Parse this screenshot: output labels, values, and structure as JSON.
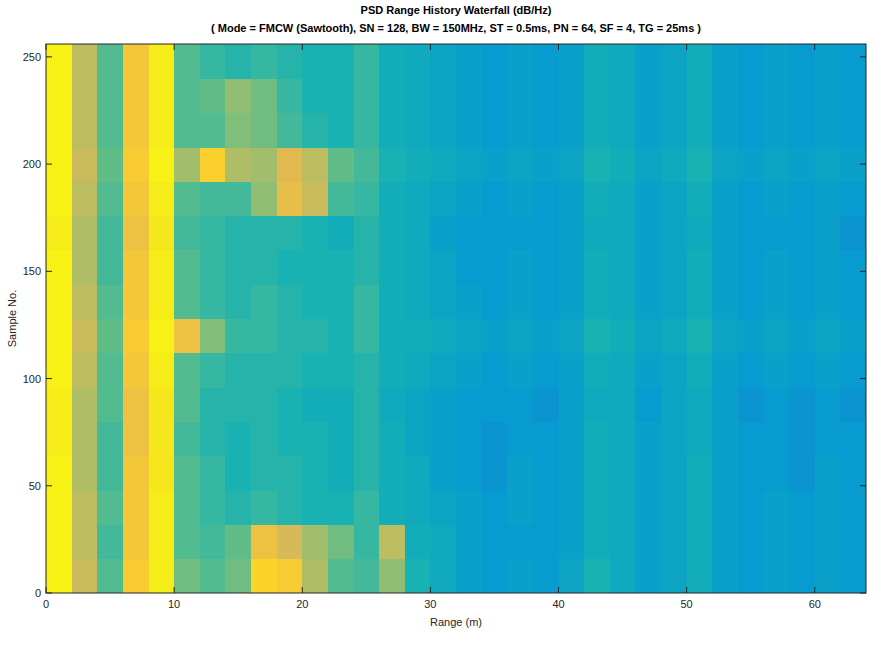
{
  "chart_data": {
    "type": "heatmap",
    "title": "PSD Range History Waterfall (dB/Hz)",
    "subtitle": "( Mode = FMCW (Sawtooth), SN = 128, BW = 150MHz, ST = 0.5ms, PN = 64, SF = 4, TG = 25ms )",
    "x_label": "Range (m)",
    "y_label": "Sample No.",
    "xlim": [
      0,
      64
    ],
    "ylim": [
      0,
      256
    ],
    "xticks": [
      0,
      10,
      20,
      30,
      40,
      50,
      60
    ],
    "yticks": [
      0,
      50,
      100,
      150,
      200,
      250
    ],
    "x_edges": [
      0,
      2,
      4,
      6,
      8,
      10,
      12,
      14,
      16,
      18,
      20,
      22,
      24,
      26,
      28,
      30,
      32,
      34,
      36,
      38,
      40,
      42,
      44,
      46,
      48,
      50,
      52,
      54,
      56,
      58,
      60,
      62,
      64
    ],
    "y_edges": [
      0,
      16,
      32,
      48,
      64,
      80,
      96,
      112,
      128,
      144,
      160,
      176,
      192,
      208,
      224,
      240,
      256
    ],
    "color_range": [
      -75,
      -28
    ],
    "cells": [
      [
        -30,
        -44,
        -52,
        -38,
        -31,
        -50,
        -52,
        -50,
        -36,
        -38,
        -46,
        -52,
        -53,
        -48,
        -56,
        -58,
        -60,
        -61,
        -60,
        -61,
        -59,
        -56,
        -58,
        -60,
        -59,
        -57,
        -60,
        -61,
        -60,
        -61,
        -60,
        -61
      ],
      [
        -30,
        -45,
        -53,
        -39,
        -31,
        -52,
        -53,
        -51,
        -40,
        -43,
        -47,
        -50,
        -54,
        -45,
        -57,
        -58,
        -60,
        -61,
        -61,
        -61,
        -60,
        -57,
        -58,
        -60,
        -59,
        -57,
        -60,
        -61,
        -60,
        -61,
        -60,
        -61
      ],
      [
        -30,
        -45,
        -52,
        -39,
        -31,
        -52,
        -54,
        -55,
        -54,
        -55,
        -56,
        -56,
        -54,
        -57,
        -58,
        -59,
        -60,
        -61,
        -60,
        -61,
        -60,
        -57,
        -58,
        -60,
        -59,
        -57,
        -60,
        -61,
        -60,
        -61,
        -60,
        -61
      ],
      [
        -30,
        -46,
        -53,
        -39,
        -32,
        -52,
        -54,
        -56,
        -55,
        -55,
        -56,
        -57,
        -55,
        -57,
        -58,
        -60,
        -61,
        -62,
        -60,
        -61,
        -60,
        -57,
        -58,
        -60,
        -59,
        -57,
        -60,
        -61,
        -61,
        -62,
        -60,
        -61
      ],
      [
        -31,
        -46,
        -53,
        -40,
        -32,
        -53,
        -55,
        -56,
        -55,
        -56,
        -56,
        -57,
        -55,
        -57,
        -59,
        -60,
        -61,
        -62,
        -61,
        -61,
        -60,
        -57,
        -58,
        -60,
        -59,
        -58,
        -60,
        -61,
        -61,
        -62,
        -61,
        -61
      ],
      [
        -31,
        -46,
        -52,
        -40,
        -32,
        -52,
        -55,
        -55,
        -55,
        -56,
        -57,
        -57,
        -55,
        -58,
        -59,
        -60,
        -61,
        -61,
        -61,
        -62,
        -60,
        -58,
        -58,
        -61,
        -59,
        -58,
        -60,
        -62,
        -61,
        -62,
        -61,
        -62
      ],
      [
        -30,
        -45,
        -52,
        -39,
        -31,
        -52,
        -54,
        -55,
        -55,
        -55,
        -56,
        -56,
        -55,
        -57,
        -58,
        -59,
        -60,
        -61,
        -60,
        -61,
        -60,
        -57,
        -58,
        -60,
        -59,
        -57,
        -60,
        -61,
        -60,
        -61,
        -60,
        -61
      ],
      [
        -30,
        -44,
        -51,
        -38,
        -30,
        -40,
        -49,
        -54,
        -54,
        -55,
        -55,
        -56,
        -54,
        -57,
        -57,
        -58,
        -59,
        -60,
        -59,
        -60,
        -59,
        -56,
        -57,
        -59,
        -58,
        -56,
        -59,
        -60,
        -59,
        -60,
        -59,
        -60
      ],
      [
        -30,
        -45,
        -52,
        -39,
        -31,
        -52,
        -54,
        -55,
        -54,
        -55,
        -56,
        -56,
        -54,
        -57,
        -58,
        -59,
        -60,
        -61,
        -60,
        -61,
        -60,
        -57,
        -58,
        -60,
        -59,
        -57,
        -60,
        -61,
        -60,
        -61,
        -60,
        -61
      ],
      [
        -30,
        -46,
        -53,
        -39,
        -31,
        -52,
        -54,
        -55,
        -55,
        -56,
        -56,
        -56,
        -55,
        -57,
        -58,
        -59,
        -61,
        -61,
        -60,
        -61,
        -60,
        -57,
        -58,
        -60,
        -59,
        -57,
        -60,
        -61,
        -60,
        -61,
        -60,
        -61
      ],
      [
        -31,
        -46,
        -53,
        -40,
        -32,
        -53,
        -54,
        -55,
        -55,
        -55,
        -56,
        -57,
        -55,
        -57,
        -58,
        -60,
        -61,
        -61,
        -61,
        -61,
        -60,
        -58,
        -58,
        -60,
        -59,
        -58,
        -60,
        -61,
        -61,
        -61,
        -60,
        -62
      ],
      [
        -30,
        -45,
        -52,
        -39,
        -31,
        -52,
        -53,
        -53,
        -48,
        -41,
        -44,
        -53,
        -54,
        -57,
        -58,
        -59,
        -60,
        -61,
        -60,
        -61,
        -60,
        -57,
        -58,
        -60,
        -59,
        -57,
        -60,
        -61,
        -60,
        -61,
        -60,
        -61
      ],
      [
        -30,
        -44,
        -51,
        -38,
        -30,
        -47,
        -37,
        -46,
        -47,
        -42,
        -45,
        -51,
        -53,
        -56,
        -57,
        -58,
        -59,
        -60,
        -59,
        -60,
        -59,
        -56,
        -57,
        -59,
        -58,
        -56,
        -59,
        -60,
        -59,
        -60,
        -59,
        -60
      ],
      [
        -30,
        -45,
        -52,
        -39,
        -31,
        -52,
        -52,
        -49,
        -50,
        -53,
        -55,
        -56,
        -54,
        -57,
        -58,
        -59,
        -60,
        -61,
        -60,
        -61,
        -60,
        -57,
        -58,
        -60,
        -59,
        -57,
        -60,
        -61,
        -60,
        -61,
        -60,
        -61
      ],
      [
        -30,
        -45,
        -52,
        -39,
        -31,
        -52,
        -51,
        -48,
        -50,
        -54,
        -56,
        -56,
        -54,
        -57,
        -58,
        -59,
        -60,
        -61,
        -60,
        -61,
        -60,
        -57,
        -58,
        -60,
        -59,
        -57,
        -60,
        -61,
        -60,
        -61,
        -60,
        -61
      ],
      [
        -30,
        -45,
        -52,
        -39,
        -31,
        -52,
        -54,
        -55,
        -54,
        -55,
        -56,
        -56,
        -54,
        -57,
        -58,
        -59,
        -60,
        -61,
        -60,
        -61,
        -60,
        -57,
        -58,
        -60,
        -59,
        -57,
        -60,
        -61,
        -60,
        -61,
        -60,
        -61
      ]
    ]
  }
}
